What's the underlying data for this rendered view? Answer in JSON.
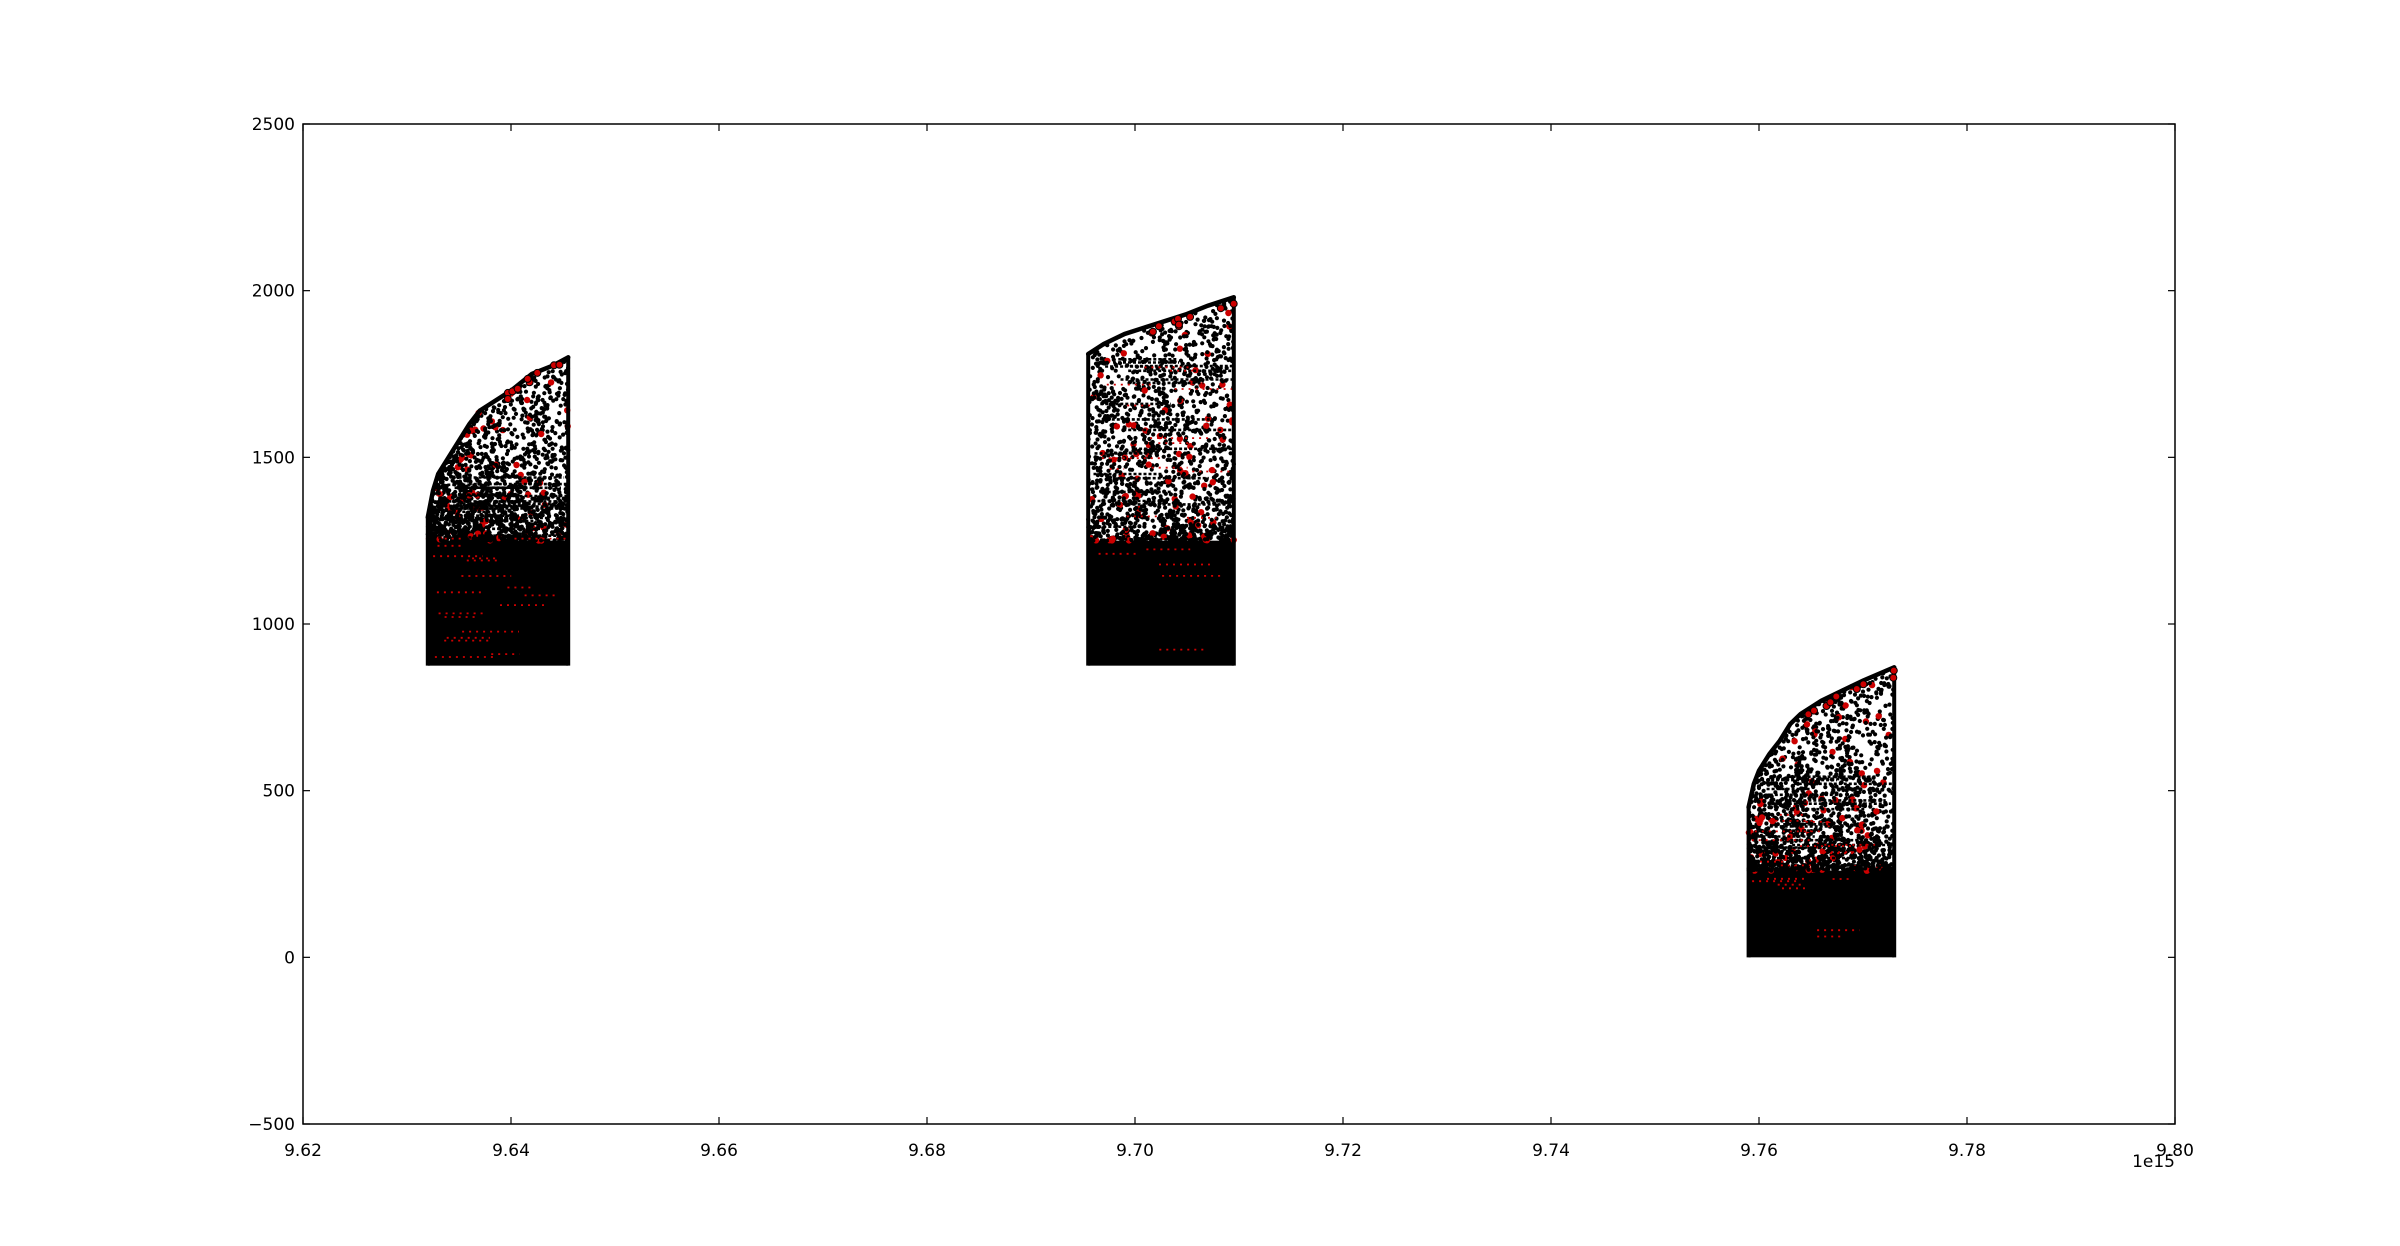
{
  "chart_data": {
    "type": "scatter",
    "title": "",
    "xlabel": "",
    "ylabel": "",
    "x_offset_label": "1e15",
    "xlim": [
      9.62,
      9.8
    ],
    "ylim": [
      -500,
      2500
    ],
    "xticks": [
      9.62,
      9.64,
      9.66,
      9.68,
      9.7,
      9.72,
      9.74,
      9.76,
      9.78,
      9.8
    ],
    "xtick_labels": [
      "9.62",
      "9.64",
      "9.66",
      "9.68",
      "9.70",
      "9.72",
      "9.74",
      "9.76",
      "9.78",
      "9.80"
    ],
    "yticks": [
      -500,
      0,
      500,
      1000,
      1500,
      2000,
      2500
    ],
    "ytick_labels": [
      "−500",
      "0",
      "500",
      "1000",
      "1500",
      "2000",
      "2500"
    ],
    "grid": false,
    "legend": "none",
    "colors": {
      "primary_points": "#000000",
      "highlight_points": "#cc0000"
    },
    "clusters": [
      {
        "x_range": [
          9.632,
          9.6455
        ],
        "y_base": 875,
        "y_top_start": 1320,
        "y_top_end": 1800,
        "dense_top": 1250,
        "outline": [
          [
            9.632,
            1320
          ],
          [
            9.6325,
            1400
          ],
          [
            9.633,
            1450
          ],
          [
            9.634,
            1500
          ],
          [
            9.635,
            1550
          ],
          [
            9.636,
            1600
          ],
          [
            9.637,
            1640
          ],
          [
            9.638,
            1660
          ],
          [
            9.64,
            1700
          ],
          [
            9.642,
            1750
          ],
          [
            9.644,
            1775
          ],
          [
            9.6455,
            1800
          ]
        ]
      },
      {
        "x_range": [
          9.6955,
          9.7095
        ],
        "y_base": 875,
        "y_top_start": 1810,
        "y_top_end": 1980,
        "dense_top": 1250,
        "outline": [
          [
            9.6955,
            1810
          ],
          [
            9.697,
            1840
          ],
          [
            9.699,
            1870
          ],
          [
            9.701,
            1890
          ],
          [
            9.703,
            1910
          ],
          [
            9.705,
            1930
          ],
          [
            9.707,
            1955
          ],
          [
            9.7095,
            1980
          ]
        ]
      },
      {
        "x_range": [
          9.759,
          9.773
        ],
        "y_base": 0,
        "y_top_start": 450,
        "y_top_end": 870,
        "dense_top": 260,
        "outline": [
          [
            9.759,
            450
          ],
          [
            9.7595,
            520
          ],
          [
            9.76,
            560
          ],
          [
            9.761,
            610
          ],
          [
            9.762,
            650
          ],
          [
            9.763,
            700
          ],
          [
            9.764,
            730
          ],
          [
            9.766,
            770
          ],
          [
            9.768,
            800
          ],
          [
            9.77,
            830
          ],
          [
            9.773,
            870
          ]
        ]
      }
    ]
  }
}
